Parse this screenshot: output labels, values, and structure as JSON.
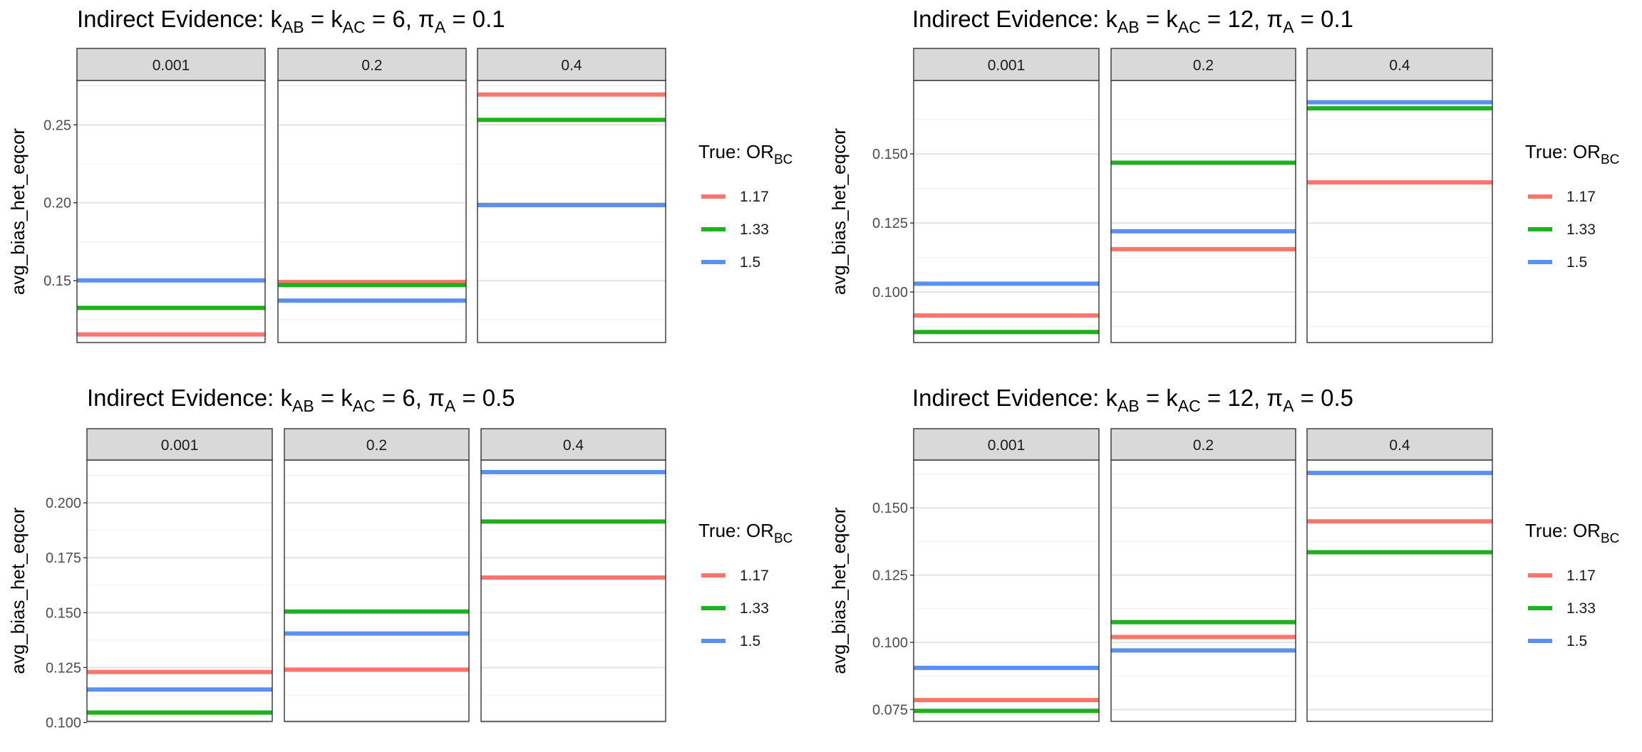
{
  "series_colors": {
    "1.17": "#F8766D",
    "1.33": "#1FB01F",
    "1.5": "#5B8FF0"
  },
  "legend": {
    "title_prefix": "True: OR",
    "title_sub": "BC",
    "labels": [
      "1.17",
      "1.33",
      "1.5"
    ]
  },
  "ylabel": "avg_bias_het_eqcor",
  "chart_data": [
    {
      "type": "line",
      "title": {
        "prefix": "Indirect Evidence: k",
        "sub1": "AB",
        "mid1": " = k",
        "sub2": "AC",
        "mid2": " = 6, π",
        "sub3": "A",
        "suffix": " = 0.1"
      },
      "ylabel": "avg_bias_het_eqcor",
      "ylim": [
        0.1103,
        0.2785
      ],
      "yticks": [
        0.15,
        0.2,
        0.25
      ],
      "ytick_labels": [
        "0.15",
        "0.20",
        "0.25"
      ],
      "facets": [
        "0.001",
        "0.2",
        "0.4"
      ],
      "series": [
        {
          "name": "1.17",
          "values": [
            0.1155,
            0.1492,
            0.2695
          ]
        },
        {
          "name": "1.33",
          "values": [
            0.1325,
            0.1472,
            0.2532
          ]
        },
        {
          "name": "1.5",
          "values": [
            0.1502,
            0.1372,
            0.1985
          ]
        }
      ],
      "grid": true
    },
    {
      "type": "line",
      "title": {
        "prefix": "Indirect Evidence: k",
        "sub1": "AB",
        "mid1": " = k",
        "sub2": "AC",
        "mid2": " = 12, π",
        "sub3": "A",
        "suffix": " = 0.1"
      },
      "ylabel": "avg_bias_het_eqcor",
      "ylim": [
        0.0817,
        0.1766
      ],
      "yticks": [
        0.1,
        0.125,
        0.15
      ],
      "ytick_labels": [
        "0.100",
        "0.125",
        "0.150"
      ],
      "facets": [
        "0.001",
        "0.2",
        "0.4"
      ],
      "series": [
        {
          "name": "1.17",
          "values": [
            0.0915,
            0.1155,
            0.1397
          ]
        },
        {
          "name": "1.33",
          "values": [
            0.0855,
            0.1468,
            0.1665
          ]
        },
        {
          "name": "1.5",
          "values": [
            0.103,
            0.122,
            0.1687
          ]
        }
      ],
      "grid": true
    },
    {
      "type": "line",
      "title": {
        "prefix": "Indirect Evidence: k",
        "sub1": "AB",
        "mid1": " = k",
        "sub2": "AC",
        "mid2": " = 6, π",
        "sub3": "A",
        "suffix": " = 0.5"
      },
      "ylabel": "avg_bias_het_eqcor",
      "ylim": [
        0.1005,
        0.2195
      ],
      "yticks": [
        0.1,
        0.125,
        0.15,
        0.175,
        0.2
      ],
      "ytick_labels": [
        "0.100",
        "0.125",
        "0.150",
        "0.175",
        "0.200"
      ],
      "facets": [
        "0.001",
        "0.2",
        "0.4"
      ],
      "series": [
        {
          "name": "1.17",
          "values": [
            0.123,
            0.124,
            0.166
          ]
        },
        {
          "name": "1.33",
          "values": [
            0.1045,
            0.1505,
            0.1915
          ]
        },
        {
          "name": "1.5",
          "values": [
            0.115,
            0.1405,
            0.214
          ]
        }
      ],
      "grid": true
    },
    {
      "type": "line",
      "title": {
        "prefix": "Indirect Evidence: k",
        "sub1": "AB",
        "mid1": " = k",
        "sub2": "AC",
        "mid2": " = 12, π",
        "sub3": "A",
        "suffix": " = 0.5"
      },
      "ylabel": "avg_bias_het_eqcor",
      "ylim": [
        0.0706,
        0.1678
      ],
      "yticks": [
        0.075,
        0.1,
        0.125,
        0.15
      ],
      "ytick_labels": [
        "0.075",
        "0.100",
        "0.125",
        "0.150"
      ],
      "facets": [
        "0.001",
        "0.2",
        "0.4"
      ],
      "series": [
        {
          "name": "1.17",
          "values": [
            0.0785,
            0.102,
            0.145
          ]
        },
        {
          "name": "1.33",
          "values": [
            0.0745,
            0.1075,
            0.1335
          ]
        },
        {
          "name": "1.5",
          "values": [
            0.0905,
            0.097,
            0.163
          ]
        }
      ],
      "grid": true
    }
  ]
}
